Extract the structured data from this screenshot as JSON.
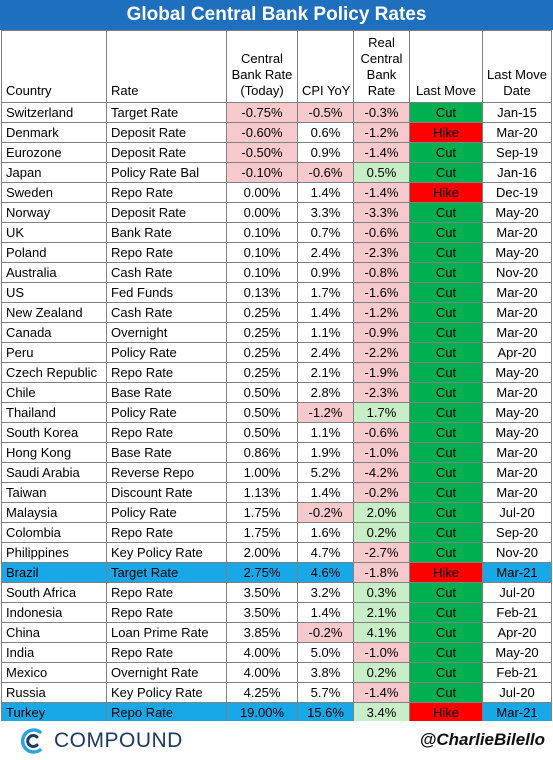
{
  "title": "Global Central Bank Policy Rates",
  "columns": {
    "country": "Country",
    "rate": "Rate",
    "cb_rate": "Central Bank Rate (Today)",
    "cpi": "CPI YoY",
    "real_rate": "Real Central Bank Rate",
    "last_move": "Last Move",
    "last_move_date": "Last Move Date"
  },
  "colors": {
    "title_bg": "#1f6fbf",
    "negative_fill": "#f8c9cc",
    "positive_fill": "#c8eec7",
    "cut_fill": "#00b050",
    "hike_fill": "#ff0000",
    "highlight_row": "#18a8e8"
  },
  "chart_data": {
    "type": "table",
    "title": "Global Central Bank Policy Rates",
    "highlighted_countries": [
      "Brazil",
      "Turkey"
    ],
    "rows": [
      {
        "country": "Switzerland",
        "rate": "Target Rate",
        "cb_rate": "-0.75%",
        "cpi": "-0.5%",
        "real_rate": "-0.3%",
        "last_move": "Cut",
        "date": "Jan-15"
      },
      {
        "country": "Denmark",
        "rate": "Deposit Rate",
        "cb_rate": "-0.60%",
        "cpi": "0.6%",
        "real_rate": "-1.2%",
        "last_move": "Hike",
        "date": "Mar-20"
      },
      {
        "country": "Eurozone",
        "rate": "Deposit Rate",
        "cb_rate": "-0.50%",
        "cpi": "0.9%",
        "real_rate": "-1.4%",
        "last_move": "Cut",
        "date": "Sep-19"
      },
      {
        "country": "Japan",
        "rate": "Policy Rate Bal",
        "cb_rate": "-0.10%",
        "cpi": "-0.6%",
        "real_rate": "0.5%",
        "last_move": "Cut",
        "date": "Jan-16"
      },
      {
        "country": "Sweden",
        "rate": "Repo Rate",
        "cb_rate": "0.00%",
        "cpi": "1.4%",
        "real_rate": "-1.4%",
        "last_move": "Hike",
        "date": "Dec-19"
      },
      {
        "country": "Norway",
        "rate": "Deposit Rate",
        "cb_rate": "0.00%",
        "cpi": "3.3%",
        "real_rate": "-3.3%",
        "last_move": "Cut",
        "date": "May-20"
      },
      {
        "country": "UK",
        "rate": "Bank Rate",
        "cb_rate": "0.10%",
        "cpi": "0.7%",
        "real_rate": "-0.6%",
        "last_move": "Cut",
        "date": "Mar-20"
      },
      {
        "country": "Poland",
        "rate": "Repo Rate",
        "cb_rate": "0.10%",
        "cpi": "2.4%",
        "real_rate": "-2.3%",
        "last_move": "Cut",
        "date": "May-20"
      },
      {
        "country": "Australia",
        "rate": "Cash Rate",
        "cb_rate": "0.10%",
        "cpi": "0.9%",
        "real_rate": "-0.8%",
        "last_move": "Cut",
        "date": "Nov-20"
      },
      {
        "country": "US",
        "rate": "Fed Funds",
        "cb_rate": "0.13%",
        "cpi": "1.7%",
        "real_rate": "-1.6%",
        "last_move": "Cut",
        "date": "Mar-20"
      },
      {
        "country": "New Zealand",
        "rate": "Cash Rate",
        "cb_rate": "0.25%",
        "cpi": "1.4%",
        "real_rate": "-1.2%",
        "last_move": "Cut",
        "date": "Mar-20"
      },
      {
        "country": "Canada",
        "rate": "Overnight",
        "cb_rate": "0.25%",
        "cpi": "1.1%",
        "real_rate": "-0.9%",
        "last_move": "Cut",
        "date": "Mar-20"
      },
      {
        "country": "Peru",
        "rate": "Policy Rate",
        "cb_rate": "0.25%",
        "cpi": "2.4%",
        "real_rate": "-2.2%",
        "last_move": "Cut",
        "date": "Apr-20"
      },
      {
        "country": "Czech Republic",
        "rate": "Repo Rate",
        "cb_rate": "0.25%",
        "cpi": "2.1%",
        "real_rate": "-1.9%",
        "last_move": "Cut",
        "date": "May-20"
      },
      {
        "country": "Chile",
        "rate": "Base Rate",
        "cb_rate": "0.50%",
        "cpi": "2.8%",
        "real_rate": "-2.3%",
        "last_move": "Cut",
        "date": "Mar-20"
      },
      {
        "country": "Thailand",
        "rate": "Policy Rate",
        "cb_rate": "0.50%",
        "cpi": "-1.2%",
        "real_rate": "1.7%",
        "last_move": "Cut",
        "date": "May-20"
      },
      {
        "country": "South Korea",
        "rate": "Repo Rate",
        "cb_rate": "0.50%",
        "cpi": "1.1%",
        "real_rate": "-0.6%",
        "last_move": "Cut",
        "date": "May-20"
      },
      {
        "country": "Hong Kong",
        "rate": "Base Rate",
        "cb_rate": "0.86%",
        "cpi": "1.9%",
        "real_rate": "-1.0%",
        "last_move": "Cut",
        "date": "Mar-20"
      },
      {
        "country": "Saudi Arabia",
        "rate": "Reverse Repo",
        "cb_rate": "1.00%",
        "cpi": "5.2%",
        "real_rate": "-4.2%",
        "last_move": "Cut",
        "date": "Mar-20"
      },
      {
        "country": "Taiwan",
        "rate": "Discount Rate",
        "cb_rate": "1.13%",
        "cpi": "1.4%",
        "real_rate": "-0.2%",
        "last_move": "Cut",
        "date": "Mar-20"
      },
      {
        "country": "Malaysia",
        "rate": "Policy Rate",
        "cb_rate": "1.75%",
        "cpi": "-0.2%",
        "real_rate": "2.0%",
        "last_move": "Cut",
        "date": "Jul-20"
      },
      {
        "country": "Colombia",
        "rate": "Repo Rate",
        "cb_rate": "1.75%",
        "cpi": "1.6%",
        "real_rate": "0.2%",
        "last_move": "Cut",
        "date": "Sep-20"
      },
      {
        "country": "Philippines",
        "rate": "Key Policy Rate",
        "cb_rate": "2.00%",
        "cpi": "4.7%",
        "real_rate": "-2.7%",
        "last_move": "Cut",
        "date": "Nov-20"
      },
      {
        "country": "Brazil",
        "rate": "Target Rate",
        "cb_rate": "2.75%",
        "cpi": "4.6%",
        "real_rate": "-1.8%",
        "last_move": "Hike",
        "date": "Mar-21"
      },
      {
        "country": "South Africa",
        "rate": "Repo Rate",
        "cb_rate": "3.50%",
        "cpi": "3.2%",
        "real_rate": "0.3%",
        "last_move": "Cut",
        "date": "Jul-20"
      },
      {
        "country": "Indonesia",
        "rate": "Repo Rate",
        "cb_rate": "3.50%",
        "cpi": "1.4%",
        "real_rate": "2.1%",
        "last_move": "Cut",
        "date": "Feb-21"
      },
      {
        "country": "China",
        "rate": "Loan Prime Rate",
        "cb_rate": "3.85%",
        "cpi": "-0.2%",
        "real_rate": "4.1%",
        "last_move": "Cut",
        "date": "Apr-20"
      },
      {
        "country": "India",
        "rate": "Repo Rate",
        "cb_rate": "4.00%",
        "cpi": "5.0%",
        "real_rate": "-1.0%",
        "last_move": "Cut",
        "date": "May-20"
      },
      {
        "country": "Mexico",
        "rate": "Overnight Rate",
        "cb_rate": "4.00%",
        "cpi": "3.8%",
        "real_rate": "0.2%",
        "last_move": "Cut",
        "date": "Feb-21"
      },
      {
        "country": "Russia",
        "rate": "Key Policy Rate",
        "cb_rate": "4.25%",
        "cpi": "5.7%",
        "real_rate": "-1.4%",
        "last_move": "Cut",
        "date": "Jul-20"
      },
      {
        "country": "Turkey",
        "rate": "Repo Rate",
        "cb_rate": "19.00%",
        "cpi": "15.6%",
        "real_rate": "3.4%",
        "last_move": "Hike",
        "date": "Mar-21"
      }
    ]
  },
  "footer": {
    "logo_text": "COMPOUND",
    "handle": "@CharlieBilello"
  }
}
